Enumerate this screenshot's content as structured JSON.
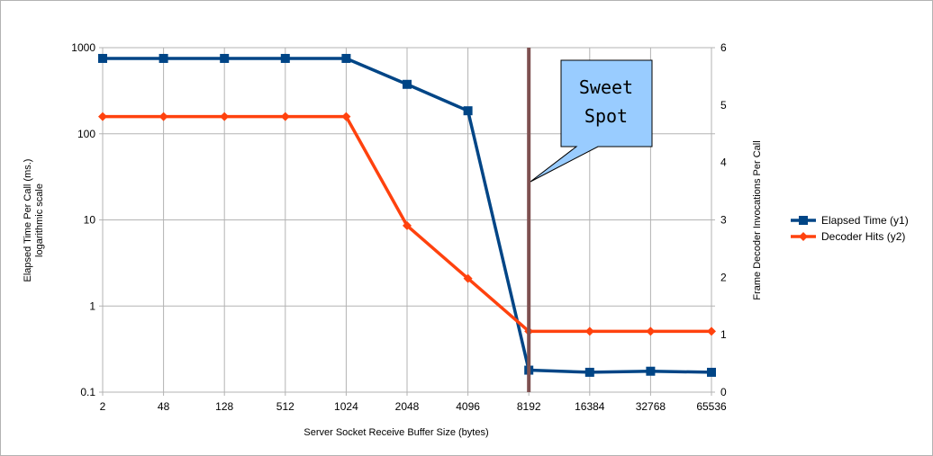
{
  "chart_data": {
    "type": "line",
    "categories": [
      "2",
      "48",
      "128",
      "512",
      "1024",
      "2048",
      "4096",
      "8192",
      "16384",
      "32768",
      "65536"
    ],
    "xlabel": "Server Socket Receive Buffer Size (bytes)",
    "ylabel_line1": "Elapsed Time Per Call (ms.)",
    "ylabel_line2": "logarithmic scale",
    "y2label": "Frame Decoder Invocations Per Call",
    "y_axis": {
      "scale": "log",
      "ylim": [
        0.1,
        1000
      ],
      "ticks": [
        "0.1",
        "1",
        "10",
        "100",
        "1000"
      ]
    },
    "y2_axis": {
      "scale": "linear",
      "ylim": [
        0,
        6
      ],
      "ticks": [
        "0",
        "1",
        "2",
        "3",
        "4",
        "5",
        "6"
      ]
    },
    "grid": true,
    "legend_position": "right",
    "series": [
      {
        "name": "Elapsed Time (y1)",
        "axis": "y1",
        "color": "#004586",
        "marker": "square",
        "values": [
          750,
          750,
          750,
          750,
          750,
          375,
          185,
          0.18,
          0.17,
          0.175,
          0.17
        ]
      },
      {
        "name": "Decoder Hits (y2)",
        "axis": "y2",
        "color": "#ff420e",
        "marker": "diamond",
        "values": [
          4.8,
          4.8,
          4.8,
          4.8,
          4.8,
          2.9,
          1.98,
          1.06,
          1.06,
          1.06,
          1.06
        ]
      }
    ],
    "marker_line": {
      "category": "8192",
      "color": "#7e5050"
    },
    "annotation": {
      "text_line1": "Sweet",
      "text_line2": "Spot",
      "fill": "#99ccff"
    }
  }
}
